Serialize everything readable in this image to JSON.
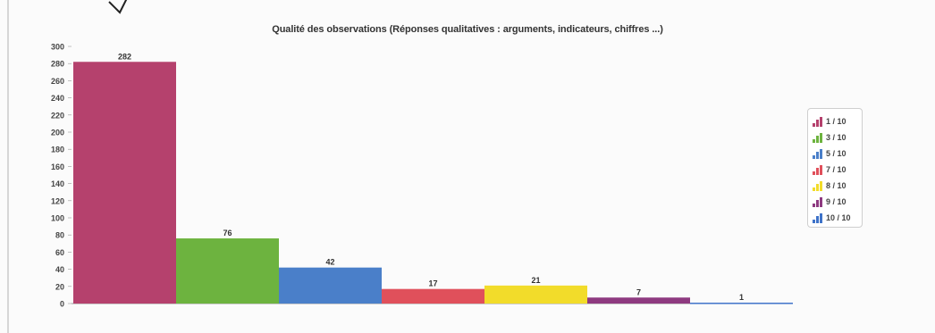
{
  "chart_data": {
    "type": "bar",
    "title": "Qualité des observations (Réponses qualitatives : arguments, indicateurs, chiffres ...)",
    "xlabel": "",
    "ylabel": "",
    "ylim": [
      0,
      300
    ],
    "yticks": [
      0,
      20,
      40,
      60,
      80,
      100,
      120,
      140,
      160,
      180,
      200,
      220,
      240,
      260,
      280,
      300
    ],
    "grid": false,
    "legend_position": "right",
    "series": [
      {
        "name": "1 / 10",
        "value": 282,
        "color": "#b5416d"
      },
      {
        "name": "3 / 10",
        "value": 76,
        "color": "#6db33f"
      },
      {
        "name": "5 / 10",
        "value": 42,
        "color": "#4a7fc9"
      },
      {
        "name": "7 / 10",
        "value": 17,
        "color": "#e0505b"
      },
      {
        "name": "8 / 10",
        "value": 21,
        "color": "#f2dc2a"
      },
      {
        "name": "9 / 10",
        "value": 7,
        "color": "#8e3a80"
      },
      {
        "name": "10 / 10",
        "value": 1,
        "color": "#3f73c9"
      }
    ]
  }
}
